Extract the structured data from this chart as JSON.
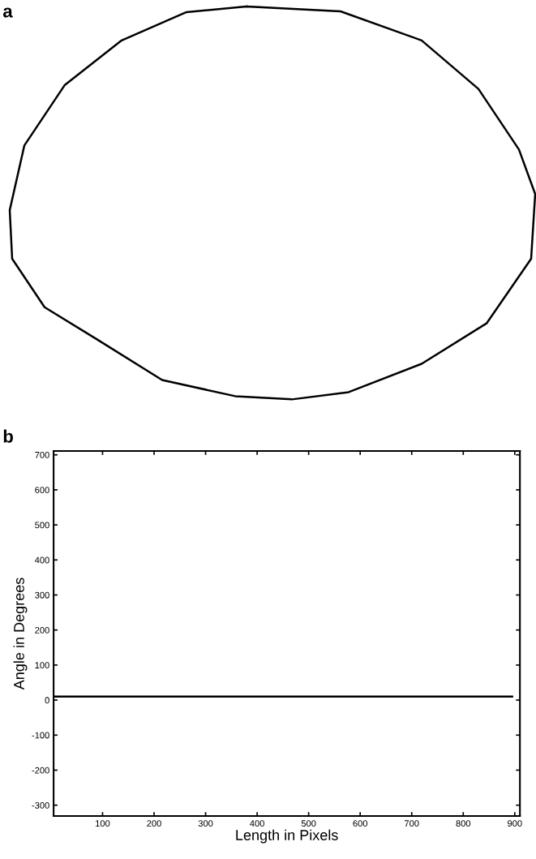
{
  "chart_data": {
    "type": "line",
    "xlabel": "Length in Pixels",
    "ylabel": "Angle in Degrees",
    "annotations": [
      "a",
      "b"
    ],
    "x": [
      5,
      895
    ],
    "series": [
      {
        "color": "#000000",
        "values": [
          10,
          10
        ]
      }
    ],
    "xlim": [
      5,
      910
    ],
    "ylim": [
      -331,
      711
    ],
    "xticks": [
      100,
      200,
      300,
      400,
      500,
      600,
      700,
      800,
      900
    ],
    "yticks": [
      -300,
      -200,
      -100,
      0,
      100,
      200,
      300,
      400,
      500,
      600,
      700
    ],
    "grid": false,
    "legend": false,
    "marker": "none",
    "line_style": "solid"
  }
}
